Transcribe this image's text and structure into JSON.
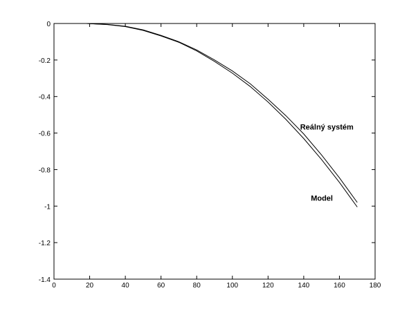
{
  "chart_data": {
    "type": "line",
    "title": "",
    "xlabel": "",
    "ylabel": "",
    "xlim": [
      0,
      180
    ],
    "ylim": [
      -1.4,
      0
    ],
    "x_ticks": [
      0,
      20,
      40,
      60,
      80,
      100,
      120,
      140,
      160,
      180
    ],
    "y_ticks": [
      0,
      -0.2,
      -0.4,
      -0.6,
      -0.8,
      -1,
      -1.2,
      -1.4
    ],
    "x_tick_labels": [
      "0",
      "20",
      "40",
      "60",
      "80",
      "100",
      "120",
      "140",
      "160",
      "180"
    ],
    "y_tick_labels": [
      "0",
      "-0.2",
      "-0.4",
      "-0.6",
      "-0.8",
      "-1",
      "-1.2",
      "-1.4"
    ],
    "grid": false,
    "legend": "none",
    "series": [
      {
        "name": "Reálný systém",
        "x": [
          18,
          30,
          40,
          50,
          60,
          70,
          80,
          90,
          100,
          110,
          120,
          130,
          140,
          150,
          160,
          170
        ],
        "y": [
          0,
          -0.005,
          -0.015,
          -0.035,
          -0.065,
          -0.1,
          -0.145,
          -0.2,
          -0.26,
          -0.33,
          -0.415,
          -0.505,
          -0.605,
          -0.72,
          -0.845,
          -0.98
        ]
      },
      {
        "name": "Model",
        "x": [
          18,
          30,
          40,
          50,
          60,
          70,
          80,
          90,
          100,
          110,
          120,
          130,
          140,
          150,
          160,
          170
        ],
        "y": [
          0,
          -0.006,
          -0.017,
          -0.038,
          -0.068,
          -0.103,
          -0.15,
          -0.208,
          -0.272,
          -0.345,
          -0.43,
          -0.525,
          -0.63,
          -0.745,
          -0.87,
          -1.005
        ]
      }
    ],
    "annotations": [
      {
        "text": "Reálný systém",
        "x": 138,
        "y": -0.58
      },
      {
        "text": "Model",
        "x": 144,
        "y": -0.97
      }
    ]
  }
}
